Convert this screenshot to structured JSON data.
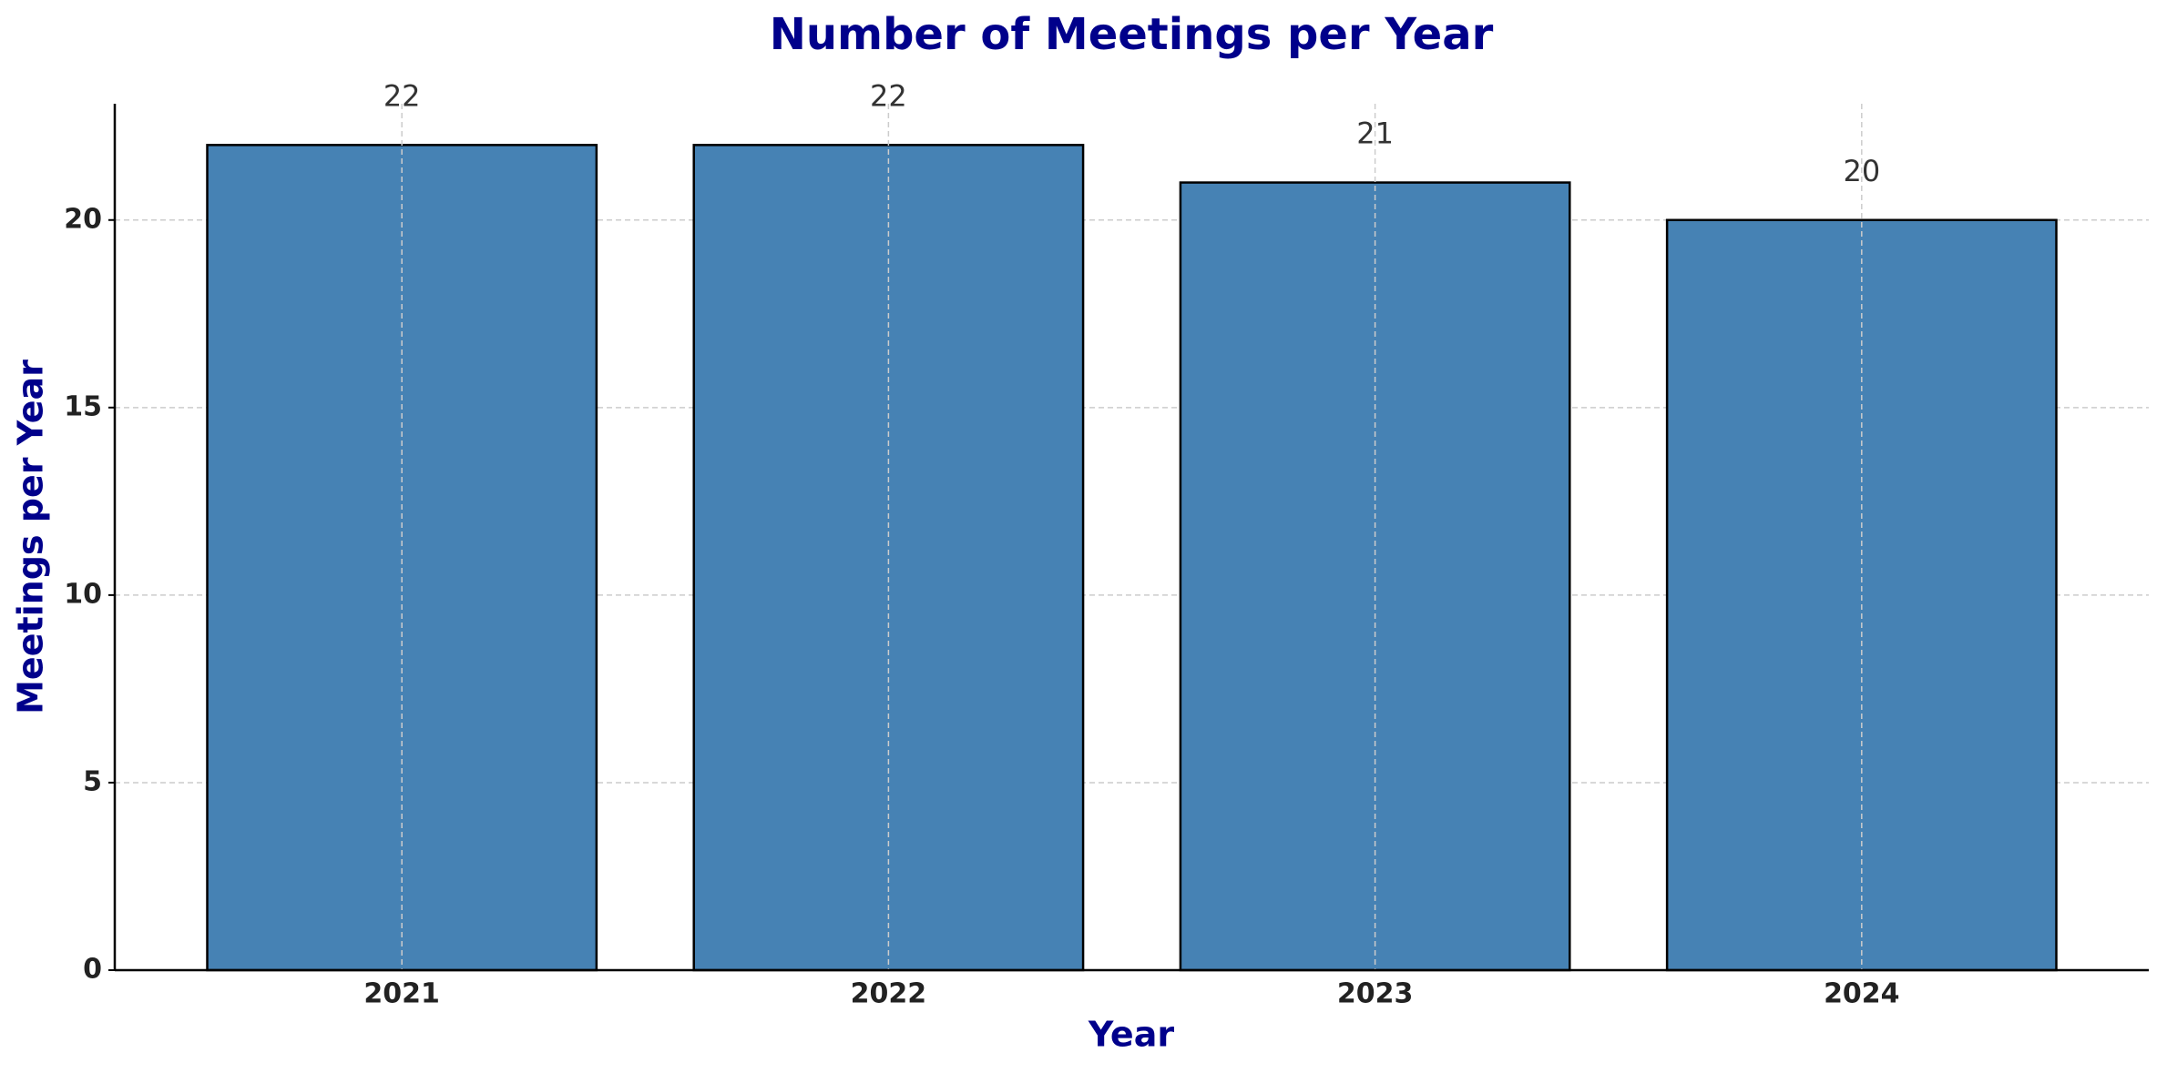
{
  "chart_data": {
    "type": "bar",
    "title": "Number of Meetings per Year",
    "x_label": "Year",
    "y_label": "Meetings per Year",
    "categories": [
      "2021",
      "2022",
      "2023",
      "2024"
    ],
    "values": [
      22,
      22,
      21,
      20
    ],
    "color": "#4682b4",
    "ylim": [
      0,
      23.1
    ],
    "yticks": [
      0,
      5,
      10,
      15,
      20
    ],
    "grid": true
  }
}
